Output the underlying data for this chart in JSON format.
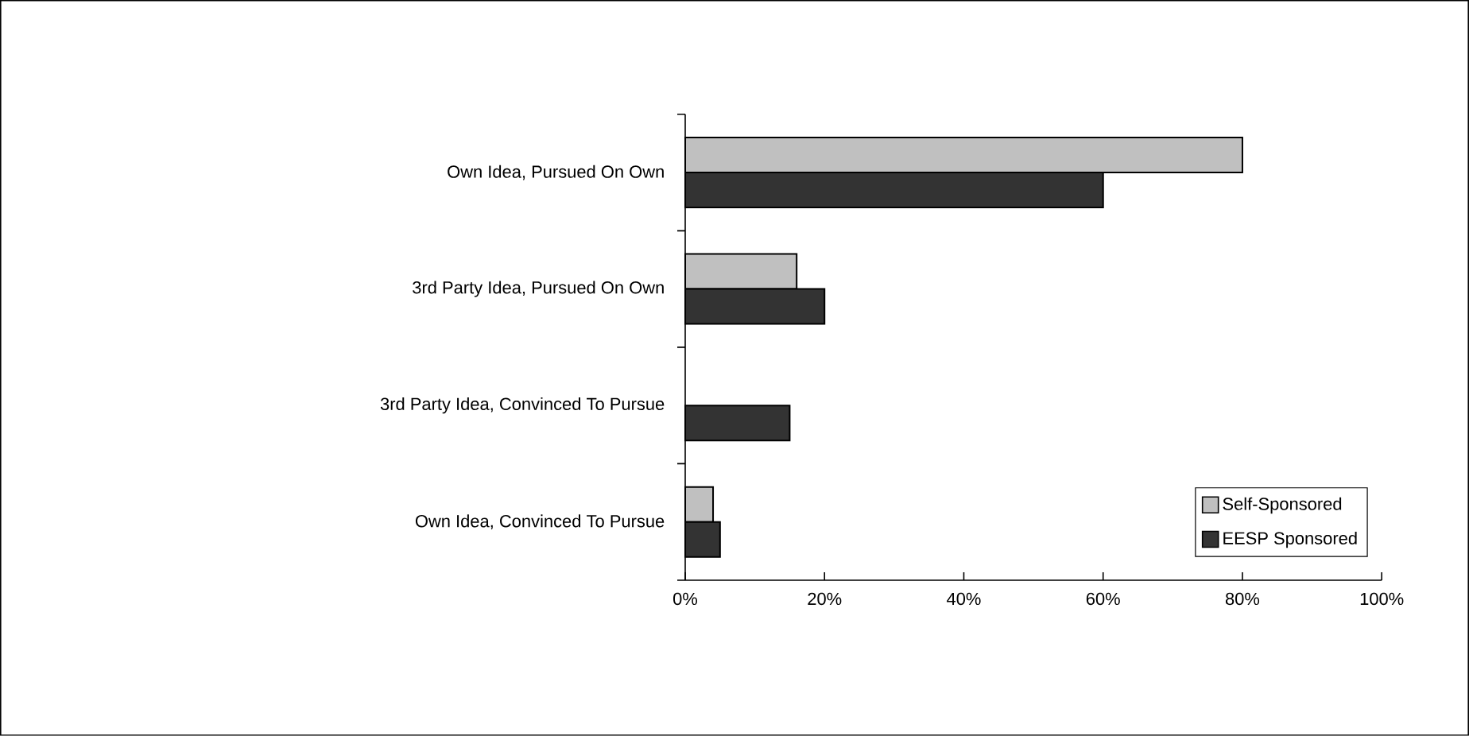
{
  "chart_data": {
    "type": "bar",
    "orientation": "horizontal",
    "categories": [
      "Own Idea, Pursued On Own",
      "3rd Party Idea, Pursued On Own",
      "3rd Party Idea, Convinced To Pursue",
      "Own Idea, Convinced To Pursue"
    ],
    "series": [
      {
        "name": "Self-Sponsored",
        "color": "#c0c0c0",
        "values": [
          80,
          16,
          null,
          4
        ]
      },
      {
        "name": "EESP Sponsored",
        "color": "#333333",
        "values": [
          60,
          20,
          15,
          5
        ]
      }
    ],
    "xlim": [
      0,
      100
    ],
    "xticks": [
      {
        "value": 0,
        "label": "0%"
      },
      {
        "value": 20,
        "label": "20%"
      },
      {
        "value": 40,
        "label": "40%"
      },
      {
        "value": 60,
        "label": "60%"
      },
      {
        "value": 80,
        "label": "80%"
      },
      {
        "value": 100,
        "label": "100%"
      }
    ],
    "grid": false,
    "legend": "bottom right"
  }
}
